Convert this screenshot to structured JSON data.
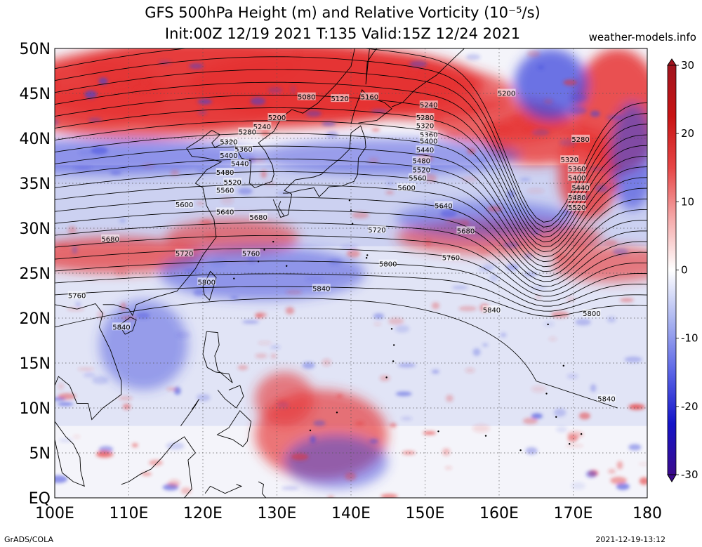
{
  "header": {
    "title_line1": "GFS 500hPa Height (m) and Relative Vorticity (10⁻⁵/s)",
    "title_line2": "Init:00Z 12/19 2021 T:135 Valid:15Z 12/24 2021",
    "site": "weather-models.info"
  },
  "map": {
    "lat_labels": [
      "50N",
      "45N",
      "40N",
      "35N",
      "30N",
      "25N",
      "20N",
      "15N",
      "10N",
      "5N",
      "EQ"
    ],
    "lon_labels": [
      "100E",
      "110E",
      "120E",
      "130E",
      "140E",
      "150E",
      "160E",
      "170E",
      "180"
    ],
    "lat_range": [
      0,
      50
    ],
    "lon_range": [
      100,
      180
    ],
    "contour_interval_m": 40,
    "contour_labels": [
      {
        "text": "5080",
        "lon": 134.0,
        "lat": 44.6
      },
      {
        "text": "5120",
        "lon": 138.5,
        "lat": 44.4
      },
      {
        "text": "5160",
        "lon": 142.5,
        "lat": 44.6
      },
      {
        "text": "5200",
        "lon": 161.0,
        "lat": 45.0
      },
      {
        "text": "5240",
        "lon": 150.5,
        "lat": 43.7
      },
      {
        "text": "5200",
        "lon": 130.0,
        "lat": 42.3
      },
      {
        "text": "5240",
        "lon": 128.0,
        "lat": 41.3
      },
      {
        "text": "5280",
        "lon": 126.0,
        "lat": 40.7
      },
      {
        "text": "5320",
        "lon": 123.5,
        "lat": 39.6
      },
      {
        "text": "5360",
        "lon": 125.5,
        "lat": 38.8
      },
      {
        "text": "5400",
        "lon": 123.5,
        "lat": 38.1
      },
      {
        "text": "5440",
        "lon": 125.0,
        "lat": 37.2
      },
      {
        "text": "5480",
        "lon": 123.0,
        "lat": 36.2
      },
      {
        "text": "5520",
        "lon": 124.0,
        "lat": 35.1
      },
      {
        "text": "5560",
        "lon": 123.0,
        "lat": 34.2
      },
      {
        "text": "5280",
        "lon": 150.0,
        "lat": 42.3
      },
      {
        "text": "5320",
        "lon": 150.0,
        "lat": 41.4
      },
      {
        "text": "5360",
        "lon": 150.5,
        "lat": 40.4
      },
      {
        "text": "5400",
        "lon": 150.5,
        "lat": 39.7
      },
      {
        "text": "5440",
        "lon": 150.0,
        "lat": 38.7
      },
      {
        "text": "5480",
        "lon": 149.5,
        "lat": 37.5
      },
      {
        "text": "5520",
        "lon": 149.5,
        "lat": 36.5
      },
      {
        "text": "5560",
        "lon": 149.0,
        "lat": 35.6
      },
      {
        "text": "5600",
        "lon": 147.5,
        "lat": 34.5
      },
      {
        "text": "5280",
        "lon": 171.0,
        "lat": 39.9
      },
      {
        "text": "5320",
        "lon": 169.5,
        "lat": 37.6
      },
      {
        "text": "5360",
        "lon": 170.5,
        "lat": 36.6
      },
      {
        "text": "5400",
        "lon": 170.5,
        "lat": 35.6
      },
      {
        "text": "5440",
        "lon": 171.0,
        "lat": 34.5
      },
      {
        "text": "5480",
        "lon": 170.5,
        "lat": 33.4
      },
      {
        "text": "5520",
        "lon": 170.5,
        "lat": 32.3
      },
      {
        "text": "5600",
        "lon": 117.5,
        "lat": 32.6
      },
      {
        "text": "5640",
        "lon": 123.0,
        "lat": 31.8
      },
      {
        "text": "5680",
        "lon": 127.5,
        "lat": 31.2
      },
      {
        "text": "5640",
        "lon": 152.5,
        "lat": 32.5
      },
      {
        "text": "5720",
        "lon": 143.5,
        "lat": 29.8
      },
      {
        "text": "5680",
        "lon": 155.5,
        "lat": 29.7
      },
      {
        "text": "5680",
        "lon": 107.5,
        "lat": 28.8
      },
      {
        "text": "5720",
        "lon": 117.5,
        "lat": 27.2
      },
      {
        "text": "5760",
        "lon": 126.5,
        "lat": 27.2
      },
      {
        "text": "5760",
        "lon": 153.5,
        "lat": 26.7
      },
      {
        "text": "5800",
        "lon": 145.0,
        "lat": 26.0
      },
      {
        "text": "5800",
        "lon": 120.5,
        "lat": 24.0
      },
      {
        "text": "5840",
        "lon": 136.0,
        "lat": 23.3
      },
      {
        "text": "5760",
        "lon": 103.0,
        "lat": 22.5
      },
      {
        "text": "5840",
        "lon": 159.0,
        "lat": 20.9
      },
      {
        "text": "5800",
        "lon": 172.5,
        "lat": 20.5
      },
      {
        "text": "5840",
        "lon": 109.0,
        "lat": 19.0
      },
      {
        "text": "5840",
        "lon": 174.5,
        "lat": 11.0
      }
    ]
  },
  "colorbar": {
    "labels": [
      "30",
      "20",
      "10",
      "0",
      "-10",
      "-20",
      "-30"
    ],
    "min": -30,
    "max": 30,
    "colors": [
      "#3a0a8c",
      "#1414c8",
      "#5a64e6",
      "#aab4f0",
      "#ffffff",
      "#f5aaaa",
      "#e64646",
      "#c81414",
      "#a0141e"
    ]
  },
  "footer": {
    "left": "GrADS/COLA",
    "right": "2021-12-19-13:12"
  },
  "colors": {
    "vort_positive": "#e63232",
    "vort_negative": "#3c46dc",
    "background_field": "#dde0f5",
    "contour": "#000000",
    "coast": "#000000"
  }
}
